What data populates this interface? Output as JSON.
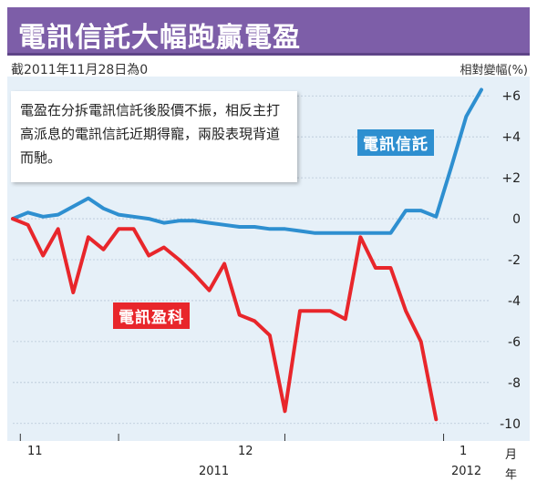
{
  "header": {
    "title": "電訊信託大幅跑贏電盈",
    "subtitle": "截2011年11月28日為0",
    "unit": "相對變幅(%)"
  },
  "annotation": {
    "text": "電盈在分拆電訊信託後股價不振，相反主打高派息的電訊信託近期得寵，兩股表現背道而馳。"
  },
  "colors": {
    "title_bg": "#7d5ea8",
    "panel_bg": "#e6f0f8",
    "trust": "#2e8fd0",
    "pccw": "#e8262b"
  },
  "chart_data": {
    "type": "line",
    "title": "電訊信託大幅跑贏電盈",
    "ylabel": "相對變幅(%)",
    "ylim": [
      -10.5,
      6.5
    ],
    "y_ticks": [
      6,
      4,
      2,
      0,
      -2,
      -4,
      -6,
      -8,
      -10
    ],
    "y_tick_labels": [
      "+6",
      "+4",
      "+2",
      "0",
      "-2",
      "-4",
      "-6",
      "-8",
      "-10"
    ],
    "grid": true,
    "x_month_labels": [
      "11",
      "12",
      "1",
      "月"
    ],
    "x_year_labels": [
      "2011",
      "2012",
      "年"
    ],
    "series": [
      {
        "name": "電訊信託",
        "color": "#2e8fd0",
        "x": [
          0,
          1,
          2,
          3,
          4,
          5,
          6,
          7,
          8,
          9,
          10,
          11,
          12,
          13,
          14,
          15,
          16,
          17,
          18,
          19,
          20,
          21,
          22,
          23,
          24,
          25,
          26,
          27,
          28,
          29,
          30,
          31
        ],
        "values": [
          0,
          0.3,
          0.1,
          0.2,
          0.6,
          1.0,
          0.5,
          0.2,
          0.1,
          0.0,
          -0.2,
          -0.1,
          -0.1,
          -0.2,
          -0.3,
          -0.4,
          -0.4,
          -0.5,
          -0.5,
          -0.6,
          -0.7,
          -0.7,
          -0.7,
          -0.7,
          -0.7,
          -0.7,
          0.4,
          0.4,
          0.1,
          2.5,
          5.0,
          6.3
        ]
      },
      {
        "name": "電訊盈科",
        "color": "#e8262b",
        "x": [
          0,
          1,
          2,
          3,
          4,
          5,
          6,
          7,
          8,
          9,
          10,
          11,
          12,
          13,
          14,
          15,
          16,
          17,
          18,
          19,
          20,
          21,
          22,
          23,
          24,
          25,
          26,
          27,
          28,
          29,
          30,
          31
        ],
        "values": [
          0,
          -0.3,
          -1.8,
          -0.5,
          -3.6,
          -0.9,
          -1.5,
          -0.5,
          -0.5,
          -1.8,
          -1.4,
          -2.0,
          -2.7,
          -3.5,
          -2.2,
          -4.7,
          -5.0,
          -5.7,
          -9.4,
          -4.5,
          -4.5,
          -4.5,
          -4.9,
          -0.9,
          -2.4,
          -2.4,
          -4.5,
          -6.0,
          -9.8,
          null,
          null,
          null
        ]
      }
    ]
  }
}
